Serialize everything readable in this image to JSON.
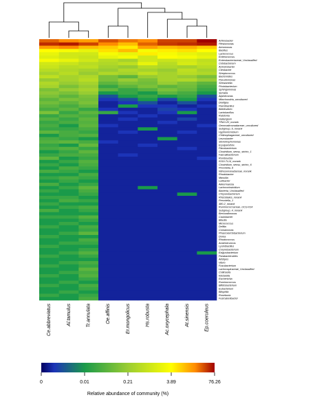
{
  "chart_data": {
    "type": "heatmap",
    "x_label": "Relative abundance of community (%)",
    "columns": [
      "Ce.abbreviatus",
      "Al.tamulus",
      "Tr.annulata",
      "Oe.affinis",
      "Er.mongolicus",
      "Hs.robusta",
      "Ac.oxycephala",
      "At.sinensis",
      "Ep.coeruleus"
    ],
    "categories": [
      "Arthrobacter",
      "Plesiomonas",
      "Aeromonas",
      "Bacillus",
      "Lactococcus",
      "Enterococcus",
      "Enterobacteriaceae_Unclassified",
      "Cetobacterium",
      "Acinetobacter",
      "Citrobacter",
      "Streptococcus",
      "Bacteroides",
      "Pseudomonas",
      "Shewanella",
      "Photobacterium",
      "Sphingomonas",
      "Serratia",
      "Alpinimonas",
      "Mitochondria_uncultured",
      "Deefgea",
      "Paenibacillus",
      "Bdellovibrio",
      "Lactobacillus",
      "Ralstonia",
      "Haliangium",
      "TRA3-20_norank",
      "Gemmatimonadaceae_uncultured",
      "Subgroup_6_norank",
      "Hyphomicrobium",
      "Chitinophagaceae_uncultured",
      "Leucobacter",
      "Stenotrophomonas",
      "Erysipelothrix",
      "Flavobacterium",
      "Clostridium_sensu_stricto_1",
      "Faecalibacterium",
      "Romboutsia",
      "0319-7L14_norank",
      "Clostridium_sensu_stricto_6",
      "Prevotella_9",
      "Nitrosomonadaceae_norank",
      "Rhodobacter",
      "Massilia",
      "Lutibacter",
      "Akkermansia",
      "Lachnoclostridium",
      "Bacteria_Unclassified",
      "Chryseobacterium",
      "Rhizobiales_norank",
      "Prevotella_1",
      "480-2_norank",
      "Ruminococcaceae_UCG-014",
      "Subgroup_4_norank",
      "Brevundimonas",
      "Caulobacter",
      "Blautia",
      "Micrococcus",
      "Delftia",
      "Comamonas",
      "Phascolarctobacterium",
      "Dorea",
      "Rhodococcus",
      "Anaerotruncus",
      "Lysinibacillus",
      "Corynebacterium",
      "Exiguobacterium",
      "Parabacteroides",
      "Alistipes",
      "Vibrio",
      "Fusobacterium",
      "Lachnospiraceae_Unclassified",
      "Collinsella",
      "Klebsiella",
      "Escherichia",
      "Ruminococcus",
      "Bifidobacterium",
      "Eubacterium",
      "Bilophila",
      "Roseburia",
      "Fusicatenibacter"
    ],
    "values": [
      [
        30,
        20,
        15,
        35,
        25,
        20,
        40,
        40,
        76.26
      ],
      [
        50,
        60,
        40,
        20,
        10,
        30,
        45,
        50,
        60
      ],
      [
        15,
        20,
        10,
        8,
        5,
        15,
        10,
        12,
        8
      ],
      [
        4,
        3,
        2,
        6,
        10,
        3,
        5,
        6,
        4
      ],
      [
        2,
        1,
        1,
        3,
        2,
        5,
        3,
        2,
        1.5
      ],
      [
        1.5,
        1,
        0.8,
        2,
        3,
        1,
        4,
        3,
        2
      ],
      [
        3,
        2,
        1,
        0.5,
        0.3,
        1,
        0.8,
        1,
        0.6
      ],
      [
        1,
        0.8,
        0.5,
        0.4,
        0.6,
        2,
        0.5,
        1.2,
        0.7
      ],
      [
        0.8,
        0.5,
        0.6,
        0.3,
        0.2,
        0.5,
        0.4,
        0.3,
        0.5
      ],
      [
        0.5,
        0.4,
        0.3,
        0.2,
        0.4,
        0.3,
        0.2,
        0.6,
        0.3
      ],
      [
        0.3,
        0.5,
        0.2,
        0.4,
        0.3,
        0.6,
        0.3,
        0.5,
        0.4
      ],
      [
        0.6,
        0.3,
        0.4,
        0.1,
        0.05,
        0.2,
        0.3,
        0.2,
        0.1
      ],
      [
        0.2,
        0.3,
        0.5,
        0.1,
        0.2,
        0.1,
        0.3,
        0.4,
        0.2
      ],
      [
        0.4,
        0.2,
        0.3,
        0.05,
        0.1,
        0.08,
        0.2,
        0.1,
        0.05
      ],
      [
        0.3,
        0.1,
        0.2,
        0.02,
        0.05,
        0.1,
        0.05,
        0.08,
        0.03
      ],
      [
        0.1,
        0.2,
        0.3,
        0.05,
        0.02,
        0.04,
        0.1,
        0.06,
        0.02
      ],
      [
        0.15,
        0.1,
        0.2,
        0.01,
        0.02,
        0.01,
        0.05,
        0.03,
        0.01
      ],
      [
        0.1,
        0.05,
        0.1,
        0.005,
        0.01,
        0.02,
        0.01,
        0.02,
        0.005
      ],
      [
        0.05,
        0.1,
        0.08,
        0.003,
        0.005,
        0.01,
        0.004,
        0.01,
        0.003
      ],
      [
        0.08,
        0.05,
        0.1,
        0.002,
        0.003,
        0.005,
        0.002,
        0.005,
        0.002
      ],
      [
        0.05,
        0.03,
        0.06,
        0.002,
        0.01,
        0.003,
        0.003,
        0.002,
        0.003
      ],
      [
        0.03,
        0.05,
        0.02,
        0.003,
        0.002,
        0.002,
        0.004,
        0.003,
        0.002
      ],
      [
        0.1,
        0.02,
        0.05,
        0.02,
        0.003,
        0.002,
        0.003,
        0.01,
        0.002
      ],
      [
        0.02,
        0.04,
        0.03,
        0.002,
        0.002,
        0.003,
        0.002,
        0.002,
        0.002
      ],
      [
        0.04,
        0.02,
        0.05,
        0.002,
        0.003,
        0.002,
        0.002,
        0.004,
        0.002
      ],
      [
        0.02,
        0.03,
        0.04,
        0.002,
        0.002,
        0.002,
        0.003,
        0.002,
        0.002
      ],
      [
        0.03,
        0.01,
        0.05,
        0.003,
        0.002,
        0.002,
        0.002,
        0.002,
        0.003
      ],
      [
        0.02,
        0.02,
        0.03,
        0.002,
        0.002,
        0.01,
        0.002,
        0.002,
        0.002
      ],
      [
        0.05,
        0.03,
        0.02,
        0.002,
        0.003,
        0.002,
        0.002,
        0.003,
        0.002
      ],
      [
        0.01,
        0.03,
        0.04,
        0.002,
        0.002,
        0.002,
        0.002,
        0.002,
        0.002
      ],
      [
        0.03,
        0.02,
        0.01,
        0.002,
        0.002,
        0.002,
        0.01,
        0.002,
        0.002
      ],
      [
        0.04,
        0.05,
        0.03,
        0.003,
        0.002,
        0.002,
        0.002,
        0.002,
        0.002
      ],
      [
        0.02,
        0.01,
        0.06,
        0.002,
        0.002,
        0.003,
        0.002,
        0.002,
        0.002
      ],
      [
        0.03,
        0.04,
        0.02,
        0.002,
        0.002,
        0.002,
        0.002,
        0.003,
        0.002
      ],
      [
        0.01,
        0.02,
        0.05,
        0.002,
        0.002,
        0.002,
        0.002,
        0.002,
        0.002
      ],
      [
        0.02,
        0.03,
        0.03,
        0.002,
        0.003,
        0.002,
        0.002,
        0.002,
        0.002
      ],
      [
        0.05,
        0.01,
        0.02,
        0.002,
        0.002,
        0.002,
        0.002,
        0.002,
        0.003
      ],
      [
        0.01,
        0.02,
        0.04,
        0.002,
        0.002,
        0.002,
        0.002,
        0.002,
        0.002
      ],
      [
        0.02,
        0.01,
        0.03,
        0.002,
        0.002,
        0.002,
        0.002,
        0.002,
        0.002
      ],
      [
        0.01,
        0.03,
        0.02,
        0.002,
        0.002,
        0.002,
        0.002,
        0.002,
        0.002
      ],
      [
        0.03,
        0.02,
        0.01,
        0.002,
        0.002,
        0.002,
        0.002,
        0.002,
        0.002
      ],
      [
        0.01,
        0.01,
        0.03,
        0.002,
        0.002,
        0.002,
        0.002,
        0.002,
        0.002
      ],
      [
        0.02,
        0.03,
        0.02,
        0.002,
        0.002,
        0.002,
        0.002,
        0.002,
        0.002
      ],
      [
        0.01,
        0.02,
        0.01,
        0.002,
        0.002,
        0.002,
        0.002,
        0.002,
        0.002
      ],
      [
        0.03,
        0.01,
        0.02,
        0.002,
        0.002,
        0.002,
        0.002,
        0.002,
        0.002
      ],
      [
        0.01,
        0.02,
        0.05,
        0.002,
        0.002,
        0.01,
        0.002,
        0.002,
        0.002
      ],
      [
        0.02,
        0.01,
        0.03,
        0.002,
        0.002,
        0.002,
        0.002,
        0.002,
        0.002
      ],
      [
        0.01,
        0.01,
        0.02,
        0.002,
        0.002,
        0.002,
        0.002,
        0.01,
        0.002
      ],
      [
        0.02,
        0.02,
        0.01,
        0.002,
        0.002,
        0.002,
        0.002,
        0.002,
        0.002
      ],
      [
        0.01,
        0.03,
        0.02,
        0.002,
        0.002,
        0.002,
        0.002,
        0.002,
        0.002
      ],
      [
        0.02,
        0.01,
        0.01,
        0.002,
        0.002,
        0.002,
        0.002,
        0.002,
        0.002
      ],
      [
        0.01,
        0.02,
        0.03,
        0.002,
        0.002,
        0.002,
        0.002,
        0.002,
        0.002
      ],
      [
        0.03,
        0.01,
        0.02,
        0.002,
        0.002,
        0.002,
        0.002,
        0.002,
        0.002
      ],
      [
        0.01,
        0.01,
        0.01,
        0.002,
        0.002,
        0.002,
        0.002,
        0.002,
        0.002
      ],
      [
        0.02,
        0.02,
        0.04,
        0.002,
        0.002,
        0.002,
        0.002,
        0.002,
        0.002
      ],
      [
        0.01,
        0.01,
        0.02,
        0.002,
        0.002,
        0.002,
        0.002,
        0.002,
        0.002
      ],
      [
        0.01,
        0.02,
        0.01,
        0.002,
        0.002,
        0.002,
        0.002,
        0.002,
        0.002
      ],
      [
        0.02,
        0.01,
        0.03,
        0.002,
        0.002,
        0.002,
        0.002,
        0.002,
        0.002
      ],
      [
        0.01,
        0.01,
        0.02,
        0.002,
        0.002,
        0.002,
        0.002,
        0.002,
        0.002
      ],
      [
        0.01,
        0.02,
        0.05,
        0.002,
        0.002,
        0.002,
        0.002,
        0.002,
        0.002
      ],
      [
        0.02,
        0.01,
        0.01,
        0.002,
        0.002,
        0.002,
        0.002,
        0.002,
        0.002
      ],
      [
        0.01,
        0.01,
        0.03,
        0.002,
        0.002,
        0.002,
        0.002,
        0.002,
        0.002
      ],
      [
        0.01,
        0.02,
        0.02,
        0.002,
        0.002,
        0.002,
        0.002,
        0.002,
        0.002
      ],
      [
        0.02,
        0.01,
        0.01,
        0.002,
        0.002,
        0.002,
        0.002,
        0.002,
        0.002
      ],
      [
        0.01,
        0.01,
        0.02,
        0.002,
        0.002,
        0.002,
        0.002,
        0.002,
        0.002
      ],
      [
        0.01,
        0.02,
        0.04,
        0.002,
        0.002,
        0.002,
        0.002,
        0.002,
        0.01
      ],
      [
        0.02,
        0.01,
        0.02,
        0.002,
        0.002,
        0.002,
        0.002,
        0.002,
        0.002
      ],
      [
        0.01,
        0.01,
        0.01,
        0.002,
        0.002,
        0.002,
        0.002,
        0.002,
        0.002
      ],
      [
        0.01,
        0.02,
        0.03,
        0.002,
        0.002,
        0.002,
        0.002,
        0.002,
        0.002
      ],
      [
        0.02,
        0.01,
        0.02,
        0.002,
        0.002,
        0.002,
        0.002,
        0.002,
        0.002
      ],
      [
        0.01,
        0.01,
        0.05,
        0.002,
        0.002,
        0.002,
        0.002,
        0.002,
        0.002
      ],
      [
        0.01,
        0.02,
        0.03,
        0.002,
        0.002,
        0.002,
        0.002,
        0.002,
        0.002
      ],
      [
        0.02,
        0.01,
        0.04,
        0.002,
        0.002,
        0.002,
        0.002,
        0.002,
        0.002
      ],
      [
        0.01,
        0.01,
        0.02,
        0.002,
        0.002,
        0.002,
        0.002,
        0.002,
        0.002
      ],
      [
        0.01,
        0.02,
        0.01,
        0.002,
        0.002,
        0.002,
        0.002,
        0.002,
        0.002
      ],
      [
        0.02,
        0.01,
        0.03,
        0.002,
        0.002,
        0.002,
        0.002,
        0.002,
        0.002
      ],
      [
        0.01,
        0.01,
        0.02,
        0.002,
        0.002,
        0.002,
        0.002,
        0.002,
        0.002
      ],
      [
        0.01,
        0.02,
        0.01,
        0.002,
        0.002,
        0.002,
        0.002,
        0.002,
        0.002
      ],
      [
        0.02,
        0.01,
        0.02,
        0.002,
        0.002,
        0.002,
        0.002,
        0.002,
        0.002
      ],
      [
        0.01,
        0.01,
        0.03,
        0.002,
        0.002,
        0.002,
        0.002,
        0.002,
        0.002
      ]
    ],
    "xticks": [
      0,
      0.01,
      0.21,
      3.89,
      76.26
    ],
    "colorscale": [
      [
        0,
        "#000060"
      ],
      [
        0.003,
        "#1c34b8"
      ],
      [
        0.01,
        "#1a9a4a"
      ],
      [
        0.21,
        "#9acd32"
      ],
      [
        3.89,
        "#ffff00"
      ],
      [
        20,
        "#ff8c00"
      ],
      [
        76.26,
        "#a00000"
      ]
    ]
  }
}
